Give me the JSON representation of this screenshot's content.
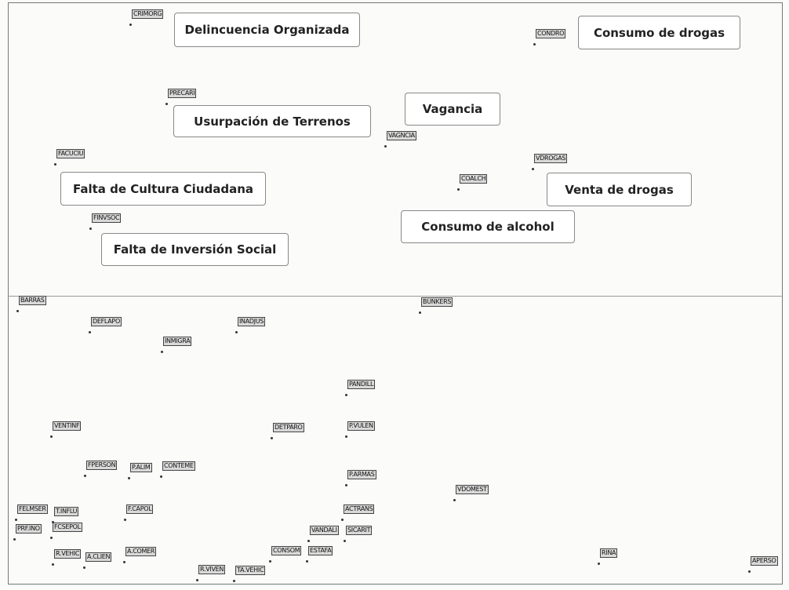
{
  "map": {
    "points": [
      "CRIMORG",
      "CONDRO",
      "PRECARI",
      "VAGNCIA",
      "FACUCIU",
      "VDROGAS",
      "COALCH",
      "FINVSOC",
      "BARRAS",
      "BUNKERS",
      "DEFLAPO",
      "INMIGRA",
      "INADJUS",
      "PANDILL",
      "VENTINF",
      "DETPARO",
      "P.VULEN",
      "FPERSON",
      "P.ALIM",
      "CONTEME",
      "P.ARMAS",
      "VDOMEST",
      "FELMSER",
      "T.INFLU",
      "F.CAPOL",
      "ACTRANS",
      "PRF.INO",
      "FCSEPOL",
      "VANDALI",
      "SICARIT",
      "R.VEHIC",
      "A.CLIEN",
      "A.COMER",
      "CONSOM",
      "ESTAFA",
      "RINA",
      "APERSO",
      "R.VIVEN",
      "TA.VEHIC"
    ],
    "callouts": [
      "Delincuencia Organizada",
      "Consumo de drogas",
      "Vagancia",
      "Usurpación de Terrenos",
      "Falta de Cultura Ciudadana",
      "Venta de drogas",
      "Consumo de alcohol",
      "Falta de Inversión Social"
    ]
  }
}
